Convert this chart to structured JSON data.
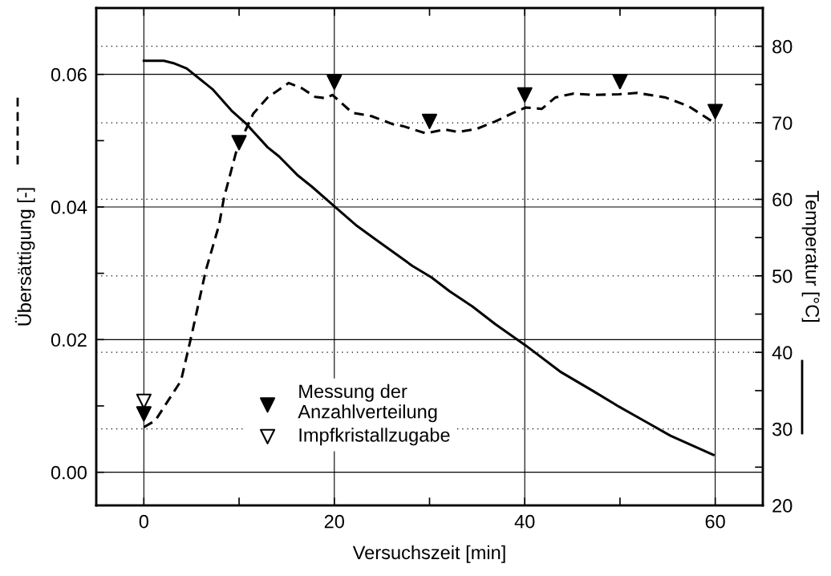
{
  "chart_data": {
    "type": "line",
    "xlabel": "Versuchszeit [min]",
    "ylabel": "Übersättigung [-]",
    "y2label": "Temperatur [°C]",
    "xlim": [
      -5,
      65
    ],
    "xticks": [
      0,
      {
        "value": 10,
        "label": null
      },
      20,
      {
        "value": 30,
        "label": null
      },
      40,
      {
        "value": 50,
        "label": null
      },
      60
    ],
    "ylim": [
      -0.005,
      0.07
    ],
    "yticks": [
      {
        "value": 0,
        "label": "0.00"
      },
      {
        "value": 0.01,
        "label": null
      },
      {
        "value": 0.02,
        "label": "0.02"
      },
      {
        "value": 0.03,
        "label": null
      },
      {
        "value": 0.04,
        "label": "0.04"
      },
      {
        "value": 0.05,
        "label": null
      },
      {
        "value": 0.06,
        "label": "0.06"
      }
    ],
    "y2lim": [
      20,
      85
    ],
    "y2ticks": [
      20,
      {
        "value": 25,
        "label": null
      },
      30,
      {
        "value": 35,
        "label": null
      },
      40,
      {
        "value": 45,
        "label": null
      },
      50,
      {
        "value": 55,
        "label": null
      },
      60,
      {
        "value": 65,
        "label": null
      },
      70,
      {
        "value": 75,
        "label": null
      },
      80
    ],
    "grid": true,
    "legend": "bottom",
    "series": [
      {
        "line_style": "dashed",
        "color": "#000000",
        "x": [
          0,
          1.2,
          3.9,
          5.0,
          6.5,
          7.9,
          8.4,
          9.8,
          11.5,
          13.0,
          15.2,
          16.6,
          18.0,
          19.1,
          19.8,
          21.9,
          23.9,
          26.3,
          27.2,
          29.6,
          31.6,
          33.0,
          35.0,
          36.9,
          38.8,
          40.1,
          41.8,
          43.2,
          45.1,
          47.1,
          49.9,
          51.8,
          54.8,
          57.2,
          59.8
        ],
        "values": [
          0.0068,
          0.0078,
          0.0138,
          0.0206,
          0.0304,
          0.0373,
          0.0413,
          0.0489,
          0.0541,
          0.0565,
          0.0587,
          0.0579,
          0.0566,
          0.0564,
          0.0569,
          0.0542,
          0.0537,
          0.0524,
          0.0522,
          0.0511,
          0.0517,
          0.0513,
          0.0518,
          0.0529,
          0.0542,
          0.055,
          0.0548,
          0.0565,
          0.0571,
          0.0569,
          0.057,
          0.0572,
          0.0565,
          0.0552,
          0.0528
        ]
      },
      {
        "line_style": "solid",
        "axis": "y2",
        "color": "#000000",
        "x": [
          0,
          2.1,
          3.1,
          4.5,
          7.2,
          9.2,
          10.8,
          13.0,
          14.2,
          16.1,
          17.6,
          20.0,
          22.4,
          24.4,
          28.2,
          30.2,
          32.1,
          34.5,
          36.9,
          40.1,
          43.7,
          47.1,
          49.9,
          52.9,
          55.3,
          59.8
        ],
        "values": [
          78.1,
          78.1,
          77.8,
          77.1,
          74.4,
          71.6,
          69.8,
          66.8,
          65.6,
          63.2,
          61.7,
          59.1,
          56.5,
          54.7,
          51.3,
          49.8,
          48.0,
          46.0,
          43.7,
          40.9,
          37.5,
          35.0,
          32.9,
          30.8,
          29.1,
          26.6
        ]
      },
      {
        "type": "scatter",
        "name": "Messung der\nAnzahlverteilung",
        "marker": "triangle",
        "color": "#000000",
        "x": [
          0,
          10,
          20,
          30,
          40,
          50,
          60
        ],
        "values": [
          0.0088,
          0.0497,
          0.0588,
          0.0529,
          0.0569,
          0.0589,
          0.0544
        ]
      },
      {
        "type": "scatter",
        "name": "Impfkristallzugabe",
        "marker": "triangle",
        "color": "#ffffff",
        "x": [
          0
        ],
        "values": [
          0.0107
        ]
      }
    ]
  }
}
